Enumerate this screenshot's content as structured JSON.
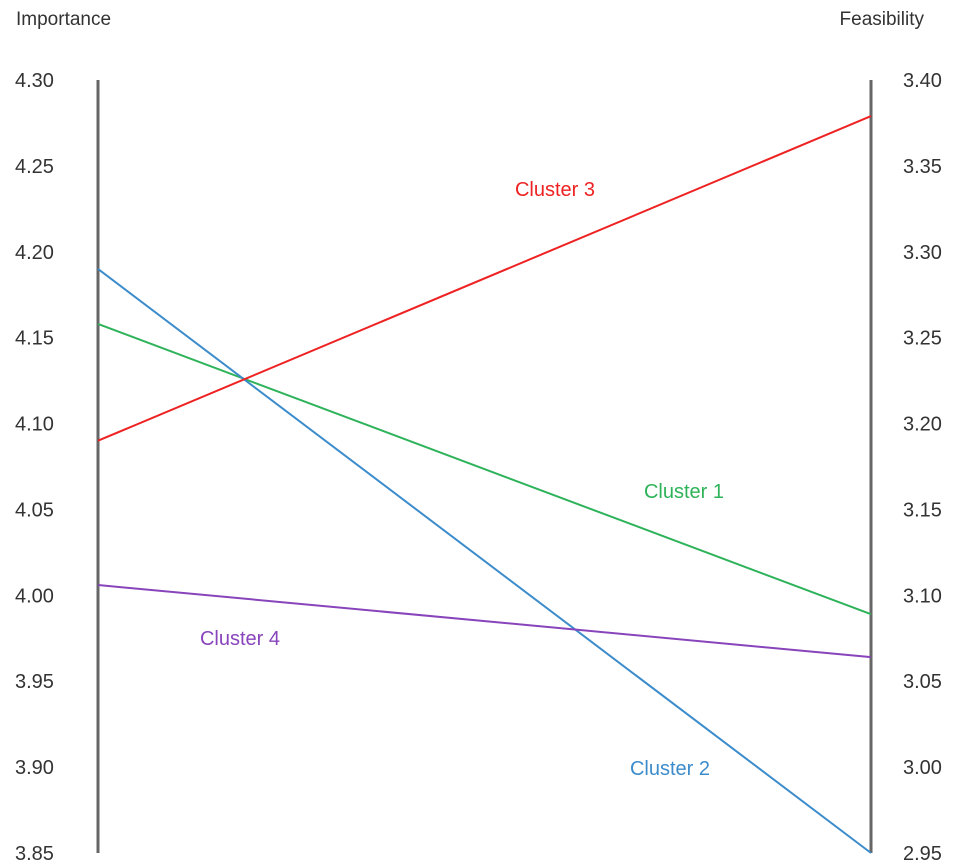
{
  "chart_data": {
    "type": "line",
    "axes": {
      "left": {
        "label": "Importance",
        "min": 3.85,
        "max": 4.3,
        "ticks": [
          "4.30",
          "4.25",
          "4.20",
          "4.15",
          "4.10",
          "4.05",
          "4.00",
          "3.95",
          "3.90",
          "3.85"
        ]
      },
      "right": {
        "label": "Feasibility",
        "min": 2.95,
        "max": 3.4,
        "ticks": [
          "3.40",
          "3.35",
          "3.30",
          "3.25",
          "3.20",
          "3.15",
          "3.10",
          "3.05",
          "3.00",
          "2.95"
        ]
      }
    },
    "series": [
      {
        "name": "Cluster 1",
        "color": "#2fb35a",
        "importance": 4.158,
        "feasibility": 3.089
      },
      {
        "name": "Cluster 2",
        "color": "#3c8ccc",
        "importance": 4.19,
        "feasibility": 2.95
      },
      {
        "name": "Cluster 3",
        "color": "#ee2222",
        "importance": 4.09,
        "feasibility": 3.379
      },
      {
        "name": "Cluster 4",
        "color": "#8844bb",
        "importance": 4.006,
        "feasibility": 3.064
      }
    ],
    "grid": false,
    "legend": "inline labels"
  }
}
